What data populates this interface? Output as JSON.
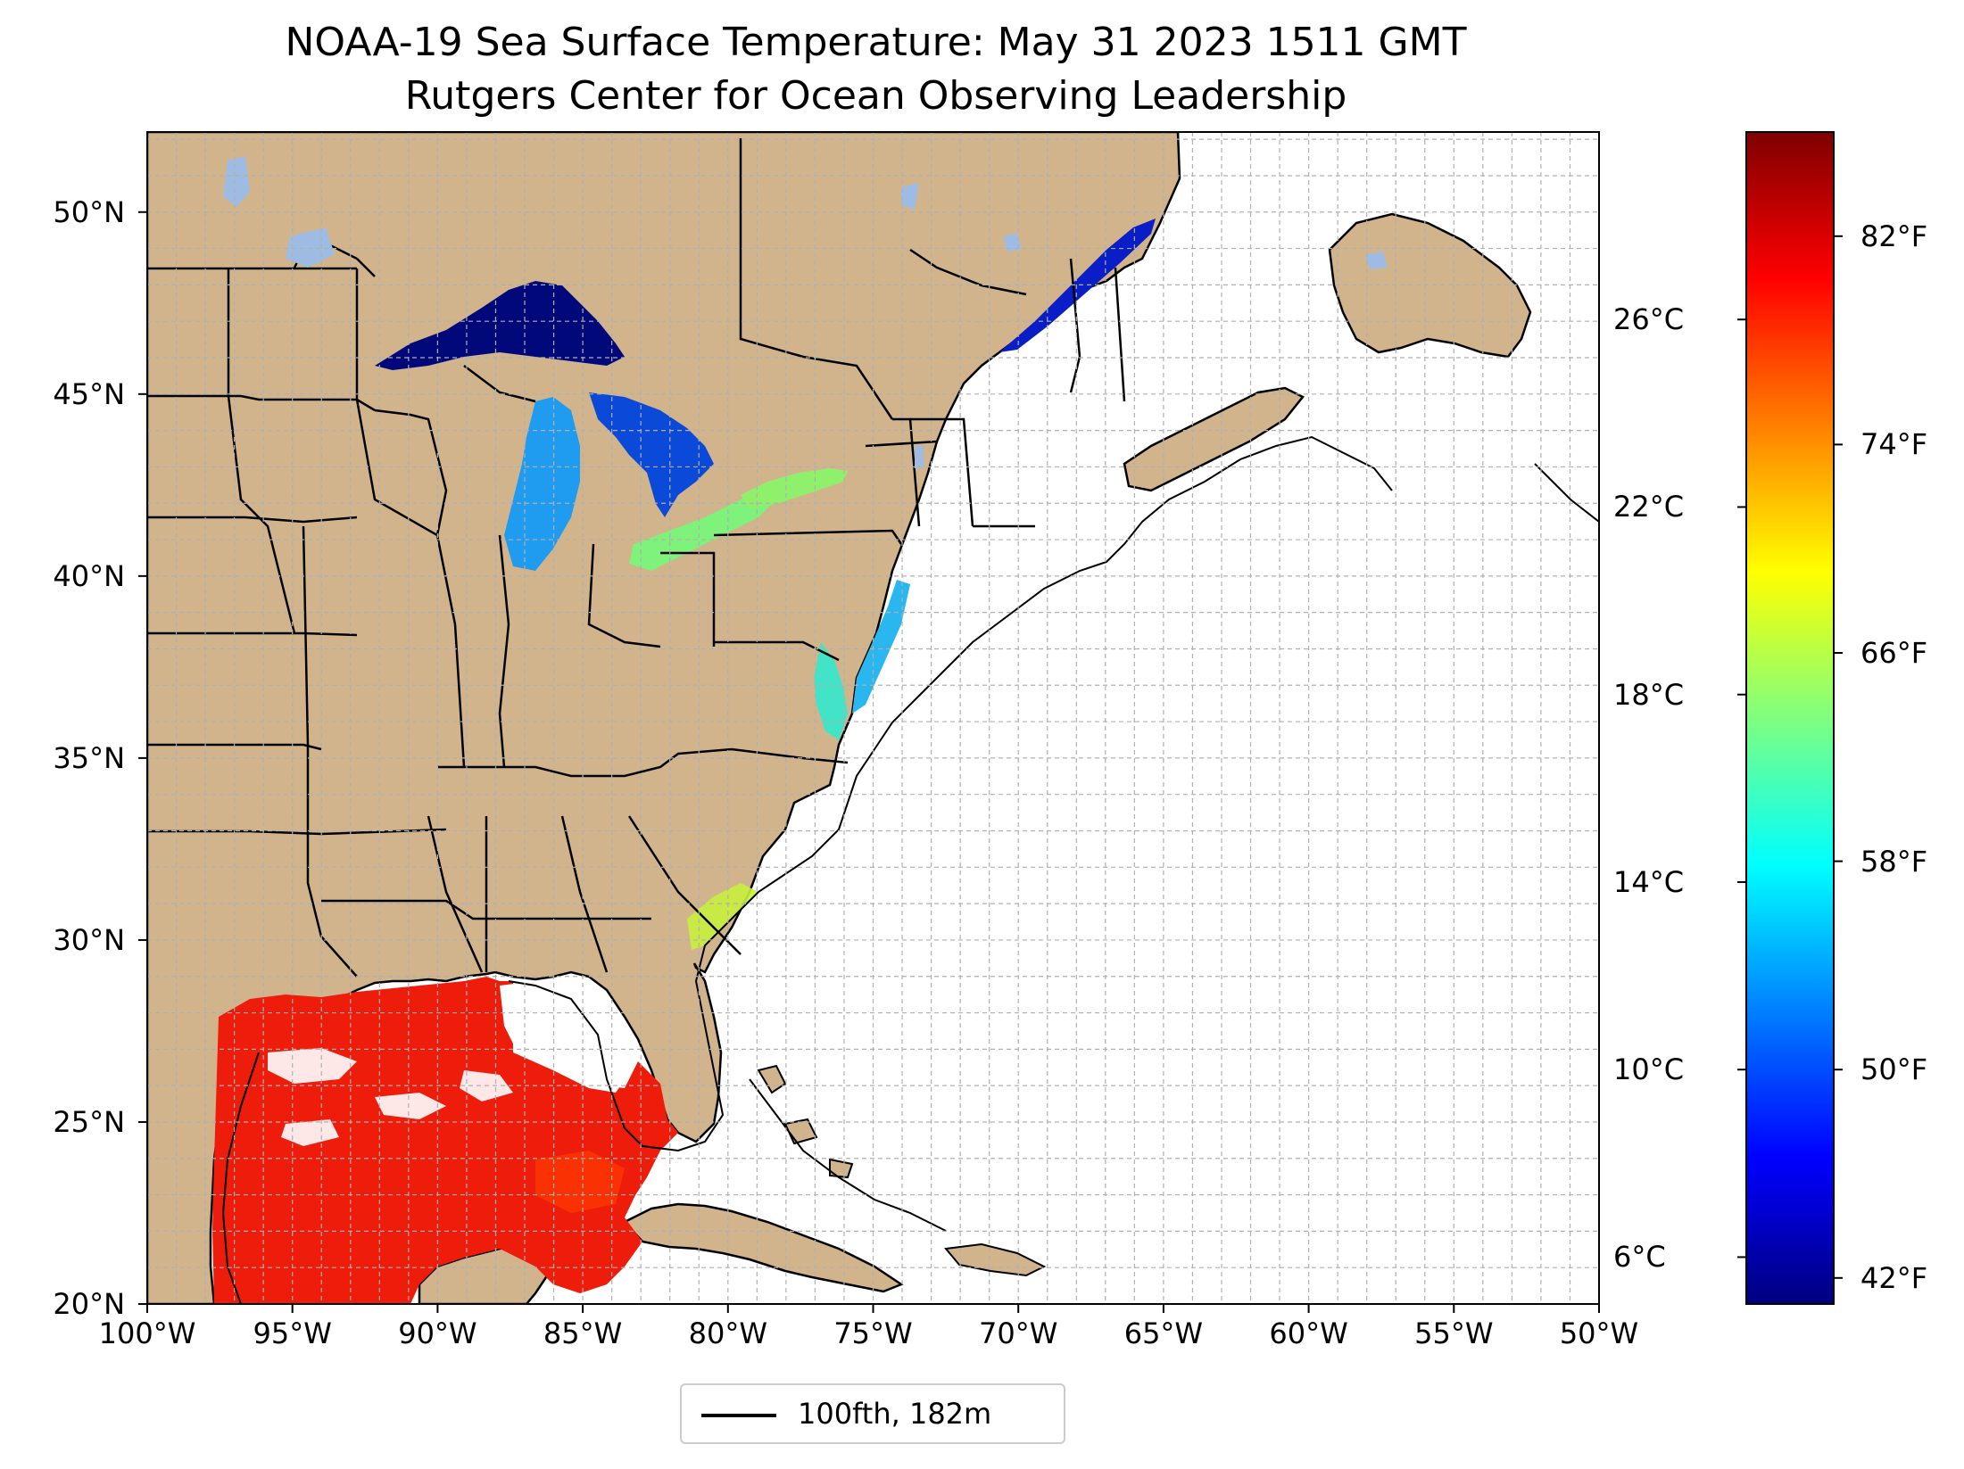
{
  "title": {
    "line1": "NOAA-19 Sea Surface Temperature: May 31 2023 1511 GMT",
    "line2": "Rutgers Center for Ocean Observing Leadership"
  },
  "map": {
    "projection": "plate-carree",
    "lon_range": [
      -100,
      -50
    ],
    "lat_range": [
      20,
      52.2
    ],
    "grid": true,
    "grid_spacing_deg": 1,
    "land_color": "#d2b48c",
    "ocean_nodata_color": "#ffffff",
    "missing_lake_color": "#9ebbe3",
    "lat_ticks": [
      {
        "value": 20,
        "label": "20°N"
      },
      {
        "value": 25,
        "label": "25°N"
      },
      {
        "value": 30,
        "label": "30°N"
      },
      {
        "value": 35,
        "label": "35°N"
      },
      {
        "value": 40,
        "label": "40°N"
      },
      {
        "value": 45,
        "label": "45°N"
      },
      {
        "value": 50,
        "label": "50°N"
      }
    ],
    "lon_ticks": [
      {
        "value": -100,
        "label": "100°W"
      },
      {
        "value": -95,
        "label": "95°W"
      },
      {
        "value": -90,
        "label": "90°W"
      },
      {
        "value": -85,
        "label": "85°W"
      },
      {
        "value": -80,
        "label": "80°W"
      },
      {
        "value": -75,
        "label": "75°W"
      },
      {
        "value": -70,
        "label": "70°W"
      },
      {
        "value": -65,
        "label": "65°W"
      },
      {
        "value": -60,
        "label": "60°W"
      },
      {
        "value": -55,
        "label": "55°W"
      },
      {
        "value": -50,
        "label": "50°W"
      }
    ],
    "sst_regions": [
      {
        "region": "Gulf of Mexico",
        "temp_c_approx": 28
      },
      {
        "region": "Lake Superior",
        "temp_c_approx": 4
      },
      {
        "region": "Lake Michigan",
        "temp_c_approx": 13
      },
      {
        "region": "Lake Huron",
        "temp_c_approx": 10
      },
      {
        "region": "Lake Erie",
        "temp_c_approx": 18
      },
      {
        "region": "Lake Ontario",
        "temp_c_approx": 17
      },
      {
        "region": "Chesapeake Bay",
        "temp_c_approx": 19
      },
      {
        "region": "Gulf of St. Lawrence",
        "temp_c_approx": 5
      }
    ]
  },
  "colorbar": {
    "colormap": "jet",
    "range_c": [
      5,
      30
    ],
    "colors": [
      "#00007f",
      "#0000ff",
      "#007fff",
      "#00ffff",
      "#7fff7f",
      "#ffff00",
      "#ff7f00",
      "#ff0000",
      "#7f0000"
    ],
    "celsius_ticks": [
      {
        "value": 6,
        "label": "6°C"
      },
      {
        "value": 10,
        "label": "10°C"
      },
      {
        "value": 14,
        "label": "14°C"
      },
      {
        "value": 18,
        "label": "18°C"
      },
      {
        "value": 22,
        "label": "22°C"
      },
      {
        "value": 26,
        "label": "26°C"
      }
    ],
    "fahrenheit_ticks": [
      {
        "value": 42,
        "label": "42°F"
      },
      {
        "value": 50,
        "label": "50°F"
      },
      {
        "value": 58,
        "label": "58°F"
      },
      {
        "value": 66,
        "label": "66°F"
      },
      {
        "value": 74,
        "label": "74°F"
      },
      {
        "value": 82,
        "label": "82°F"
      }
    ]
  },
  "legend": {
    "label": "100fth, 182m",
    "line_color": "#000000"
  }
}
